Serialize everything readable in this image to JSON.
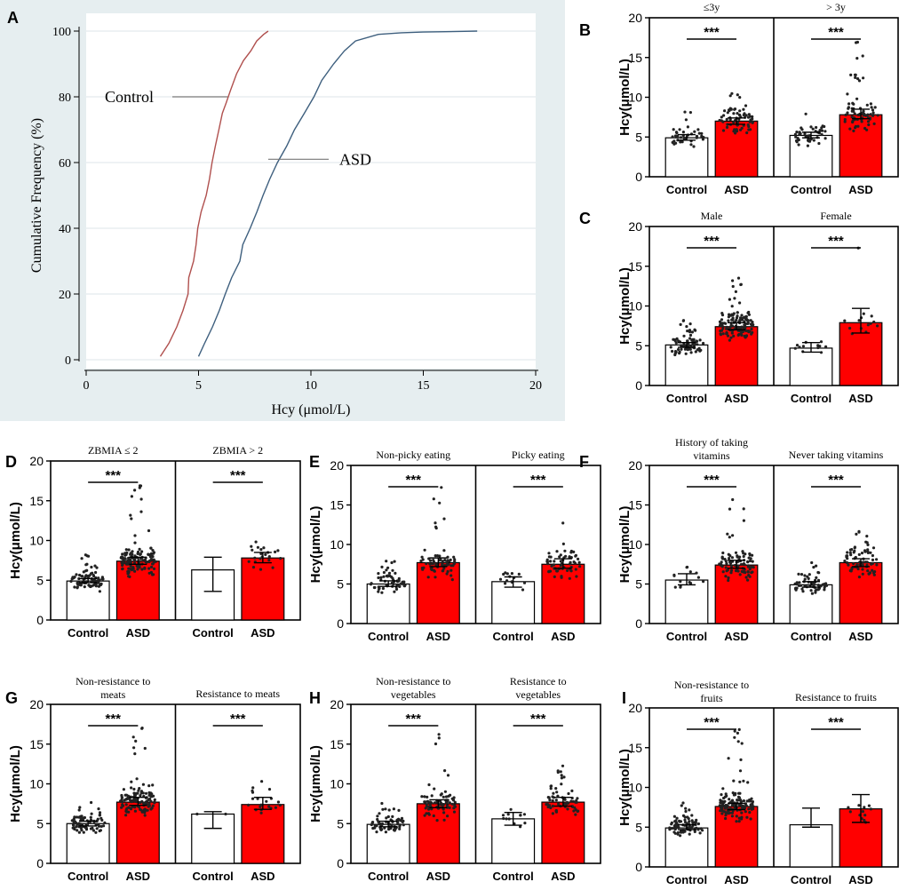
{
  "chart_data": [
    {
      "id": "A",
      "type": "line",
      "panel_label": "A",
      "xlabel": "Hcy (μmol/L)",
      "ylabel": "Cumulative Frequency (%)",
      "xlim": [
        0,
        20
      ],
      "ylim": [
        0,
        100
      ],
      "xticks": [
        0,
        5,
        10,
        15,
        20
      ],
      "yticks": [
        0,
        20,
        40,
        60,
        80,
        100
      ],
      "grid": true,
      "series": [
        {
          "name": "Control",
          "color": "#b0504e",
          "x": [
            3.3,
            3.7,
            4.0,
            4.3,
            4.5,
            4.6,
            4.75,
            4.9,
            5.0,
            5.15,
            5.3,
            5.45,
            5.6,
            5.75,
            5.9,
            6.05,
            6.2,
            6.4,
            6.7,
            7.0,
            7.3,
            7.6,
            7.9,
            8.1
          ],
          "y": [
            1,
            5,
            10,
            15,
            20,
            25,
            30,
            35,
            40,
            45,
            50,
            55,
            60,
            65,
            70,
            75,
            78,
            82,
            87,
            91,
            94,
            97,
            99,
            100
          ]
        },
        {
          "name": "ASD",
          "color": "#3e5f7e",
          "x": [
            5.0,
            5.3,
            5.6,
            5.9,
            6.2,
            6.5,
            6.8,
            7.0,
            7.3,
            7.6,
            7.9,
            8.2,
            8.5,
            8.9,
            9.3,
            9.7,
            10.1,
            10.5,
            11.0,
            11.5,
            12.0,
            13.0,
            14.0,
            15.0,
            16.0,
            17.4
          ],
          "y": [
            1,
            5,
            10,
            15,
            20,
            25,
            30,
            35,
            40,
            45,
            50,
            55,
            60,
            65,
            70,
            75,
            80,
            85,
            90,
            94,
            97,
            99,
            99.5,
            99.7,
            99.8,
            100
          ]
        }
      ],
      "annotations": [
        {
          "text": "Control",
          "target_series": "Control",
          "at_y": 80
        },
        {
          "text": "ASD",
          "target_series": "ASD",
          "at_y": 61
        }
      ]
    },
    {
      "id": "B",
      "type": "bar",
      "panel_label": "B",
      "ylabel": "Hcy(μmol/L)",
      "ylim": [
        0,
        20
      ],
      "yticks": [
        0,
        5,
        10,
        15,
        20
      ],
      "categories": [
        "Control",
        "ASD"
      ],
      "groups": [
        {
          "title": "≤3y",
          "sig": "***",
          "values": [
            4.9,
            7.0
          ],
          "err": [
            [
              4.6,
              5.3
            ],
            [
              6.6,
              7.4
            ]
          ],
          "scatter_ranges": [
            [
              3.8,
              8.2
            ],
            [
              4.8,
              11.0
            ]
          ],
          "scatter_n": [
            40,
            70
          ]
        },
        {
          "title": "> 3y",
          "sig": "***",
          "values": [
            5.2,
            7.8
          ],
          "err": [
            [
              4.9,
              5.6
            ],
            [
              7.3,
              8.5
            ]
          ],
          "scatter_ranges": [
            [
              3.9,
              8.2
            ],
            [
              4.8,
              17.3
            ]
          ],
          "scatter_n": [
            45,
            75
          ]
        }
      ]
    },
    {
      "id": "C",
      "type": "bar",
      "panel_label": "C",
      "ylabel": "Hcy(μmol/L)",
      "ylim": [
        0,
        20
      ],
      "yticks": [
        0,
        5,
        10,
        15,
        20
      ],
      "categories": [
        "Control",
        "ASD"
      ],
      "groups": [
        {
          "title": "Male",
          "sig": "***",
          "values": [
            5.1,
            7.4
          ],
          "err": [
            [
              4.8,
              5.4
            ],
            [
              7.0,
              7.9
            ]
          ],
          "scatter_ranges": [
            [
              3.5,
              8.2
            ],
            [
              4.8,
              14.0
            ]
          ],
          "scatter_n": [
            75,
            130
          ]
        },
        {
          "title": "Female",
          "sig": "***",
          "values": [
            4.7,
            7.9
          ],
          "err": [
            [
              4.2,
              5.4
            ],
            [
              6.6,
              9.7
            ]
          ],
          "scatter_ranges": [
            [
              3.8,
              6.3
            ],
            [
              5.0,
              17.3
            ]
          ],
          "scatter_n": [
            12,
            14
          ]
        }
      ]
    },
    {
      "id": "D",
      "type": "bar",
      "panel_label": "D",
      "ylabel": "Hcy(μmol/L)",
      "ylim": [
        0,
        20
      ],
      "yticks": [
        0,
        5,
        10,
        15,
        20
      ],
      "categories": [
        "Control",
        "ASD"
      ],
      "groups": [
        {
          "title": "ZBMIA ≤ 2",
          "sig": "***",
          "values": [
            4.9,
            7.4
          ],
          "err": [
            [
              4.7,
              5.2
            ],
            [
              7.0,
              7.9
            ]
          ],
          "scatter_ranges": [
            [
              3.6,
              8.2
            ],
            [
              4.8,
              17.3
            ]
          ],
          "scatter_n": [
            85,
            130
          ]
        },
        {
          "title": "ZBMIA > 2",
          "sig": "***",
          "values": [
            6.3,
            7.8
          ],
          "err": [
            [
              3.6,
              7.9
            ],
            [
              7.2,
              8.5
            ]
          ],
          "scatter_ranges": [
            [
              6.3,
              6.3
            ],
            [
              5.5,
              11.8
            ]
          ],
          "scatter_n": [
            0,
            22
          ]
        }
      ]
    },
    {
      "id": "E",
      "type": "bar",
      "panel_label": "E",
      "ylabel": "Hcy(μmol/L)",
      "ylim": [
        0,
        20
      ],
      "yticks": [
        0,
        5,
        10,
        15,
        20
      ],
      "categories": [
        "Control",
        "ASD"
      ],
      "groups": [
        {
          "title": "Non-picky eating",
          "sig": "***",
          "values": [
            5.0,
            7.7
          ],
          "err": [
            [
              4.7,
              5.4
            ],
            [
              7.2,
              8.3
            ]
          ],
          "scatter_ranges": [
            [
              3.6,
              8.2
            ],
            [
              4.8,
              17.3
            ]
          ],
          "scatter_n": [
            60,
            70
          ]
        },
        {
          "title": "Picky eating",
          "sig": "***",
          "values": [
            5.3,
            7.5
          ],
          "err": [
            [
              4.6,
              5.9
            ],
            [
              7.0,
              8.2
            ]
          ],
          "scatter_ranges": [
            [
              4.2,
              6.8
            ],
            [
              4.8,
              13.3
            ]
          ],
          "scatter_n": [
            14,
            60
          ]
        }
      ]
    },
    {
      "id": "F",
      "type": "bar",
      "panel_label": "F",
      "ylabel": "Hcy(μmol/L)",
      "ylim": [
        0,
        20
      ],
      "yticks": [
        0,
        5,
        10,
        15,
        20
      ],
      "categories": [
        "Control",
        "ASD"
      ],
      "groups": [
        {
          "title": "History of taking vitamins",
          "sig": "***",
          "values": [
            5.5,
            7.4
          ],
          "err": [
            [
              4.9,
              6.3
            ],
            [
              7.0,
              8.0
            ]
          ],
          "scatter_ranges": [
            [
              4.6,
              7.2
            ],
            [
              4.8,
              17.3
            ]
          ],
          "scatter_n": [
            14,
            90
          ]
        },
        {
          "title": "Never taking vitamins",
          "sig": "***",
          "values": [
            4.9,
            7.7
          ],
          "err": [
            [
              4.6,
              5.3
            ],
            [
              7.2,
              8.2
            ]
          ],
          "scatter_ranges": [
            [
              3.6,
              8.2
            ],
            [
              4.8,
              12.0
            ]
          ],
          "scatter_n": [
            60,
            70
          ]
        }
      ]
    },
    {
      "id": "G",
      "type": "bar",
      "panel_label": "G",
      "ylabel": "Hcy(μmol/L)",
      "ylim": [
        0,
        20
      ],
      "yticks": [
        0,
        5,
        10,
        15,
        20
      ],
      "categories": [
        "Control",
        "ASD"
      ],
      "groups": [
        {
          "title": "Non-resistance to meats",
          "sig": "***",
          "values": [
            5.0,
            7.7
          ],
          "err": [
            [
              4.7,
              5.3
            ],
            [
              7.3,
              8.3
            ]
          ],
          "scatter_ranges": [
            [
              3.5,
              8.2
            ],
            [
              4.8,
              17.3
            ]
          ],
          "scatter_n": [
            80,
            120
          ]
        },
        {
          "title": "Resistance to meats",
          "sig": "***",
          "values": [
            6.2,
            7.4
          ],
          "err": [
            [
              4.4,
              6.5
            ],
            [
              6.8,
              8.3
            ]
          ],
          "scatter_ranges": [
            [
              6.2,
              7.2
            ],
            [
              5.5,
              10.8
            ]
          ],
          "scatter_n": [
            2,
            20
          ]
        }
      ]
    },
    {
      "id": "H",
      "type": "bar",
      "panel_label": "H",
      "ylabel": "Hcy(μmol/L)",
      "ylim": [
        0,
        20
      ],
      "yticks": [
        0,
        5,
        10,
        15,
        20
      ],
      "categories": [
        "Control",
        "ASD"
      ],
      "groups": [
        {
          "title": "Non-resistance to vegetables",
          "sig": "***",
          "values": [
            4.9,
            7.5
          ],
          "err": [
            [
              4.6,
              5.3
            ],
            [
              7.0,
              8.0
            ]
          ],
          "scatter_ranges": [
            [
              3.5,
              8.2
            ],
            [
              4.8,
              17.3
            ]
          ],
          "scatter_n": [
            70,
            80
          ]
        },
        {
          "title": "Resistance to vegetables",
          "sig": "***",
          "values": [
            5.6,
            7.7
          ],
          "err": [
            [
              4.8,
              6.4
            ],
            [
              7.2,
              8.3
            ]
          ],
          "scatter_ranges": [
            [
              4.6,
              6.8
            ],
            [
              4.8,
              13.3
            ]
          ],
          "scatter_n": [
            12,
            60
          ]
        }
      ]
    },
    {
      "id": "I",
      "type": "bar",
      "panel_label": "I",
      "ylabel": "Hcy(μmol/L)",
      "ylim": [
        0,
        20
      ],
      "yticks": [
        0,
        5,
        10,
        15,
        20
      ],
      "categories": [
        "Control",
        "ASD"
      ],
      "groups": [
        {
          "title": "Non-resistance to fruits",
          "sig": "***",
          "values": [
            4.9,
            7.6
          ],
          "err": [
            [
              4.7,
              5.3
            ],
            [
              7.2,
              8.0
            ]
          ],
          "scatter_ranges": [
            [
              3.6,
              8.2
            ],
            [
              4.8,
              17.3
            ]
          ],
          "scatter_n": [
            85,
            130
          ]
        },
        {
          "title": "Resistance to fruits",
          "sig": "***",
          "values": [
            5.3,
            7.3
          ],
          "err": [
            [
              5.0,
              7.4
            ],
            [
              5.6,
              9.1
            ]
          ],
          "scatter_ranges": [
            [
              5.3,
              5.3
            ],
            [
              5.6,
              9.1
            ]
          ],
          "scatter_n": [
            0,
            12
          ]
        }
      ]
    }
  ],
  "colors": {
    "control_bar": "#ffffff",
    "asd_bar": "#ff0000",
    "panelA_bg": "#e6eef0",
    "panelA_plot_bg": "#ffffff",
    "grid": "#dde6ea",
    "axis": "#000000"
  }
}
